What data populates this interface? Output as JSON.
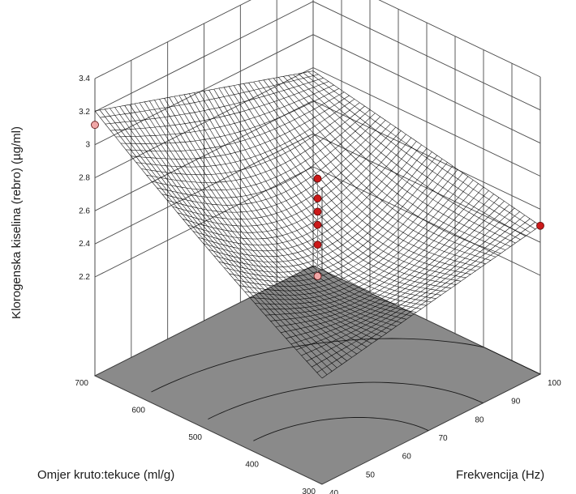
{
  "chart_data": {
    "type": "surface3d",
    "zlabel": "Klorogenska kiselina (rebro) (µg/ml)",
    "xlabel": "Omjer kruto:tekuce (ml/g)",
    "ylabel": "Frekvencija (Hz)",
    "xlim": [
      300,
      700
    ],
    "ylim": [
      40,
      100
    ],
    "zlim": [
      2.1,
      3.4
    ],
    "x_ticks": [
      "300",
      "400",
      "500",
      "600",
      "700"
    ],
    "y_ticks": [
      "40",
      "50",
      "60",
      "70",
      "80",
      "90",
      "100"
    ],
    "z_ticks": [
      "2.2",
      "2.4",
      "2.6",
      "2.8",
      "3",
      "3.2",
      "3.4"
    ],
    "grid": true,
    "surface_corners": [
      {
        "x": 300,
        "y": 40,
        "z": 2.28
      },
      {
        "x": 700,
        "y": 40,
        "z": 3.12
      },
      {
        "x": 300,
        "y": 100,
        "z": 2.5
      },
      {
        "x": 700,
        "y": 100,
        "z": 2.78
      }
    ],
    "design_points": [
      {
        "x": 700,
        "y": 40,
        "z": 3.12
      },
      {
        "x": 300,
        "y": 100,
        "z": 2.5
      },
      {
        "x": 500,
        "y": 70,
        "z": 2.79
      },
      {
        "x": 500,
        "y": 70,
        "z": 2.67
      },
      {
        "x": 500,
        "y": 70,
        "z": 2.59
      },
      {
        "x": 500,
        "y": 70,
        "z": 2.51
      },
      {
        "x": 500,
        "y": 70,
        "z": 2.39
      },
      {
        "x": 500,
        "y": 70,
        "z": 2.2
      }
    ],
    "colors": {
      "floor": "#8a8a8a",
      "surface": "#000000",
      "point_above": "#cc1a1a",
      "point_below": "#f0a6a6"
    }
  }
}
